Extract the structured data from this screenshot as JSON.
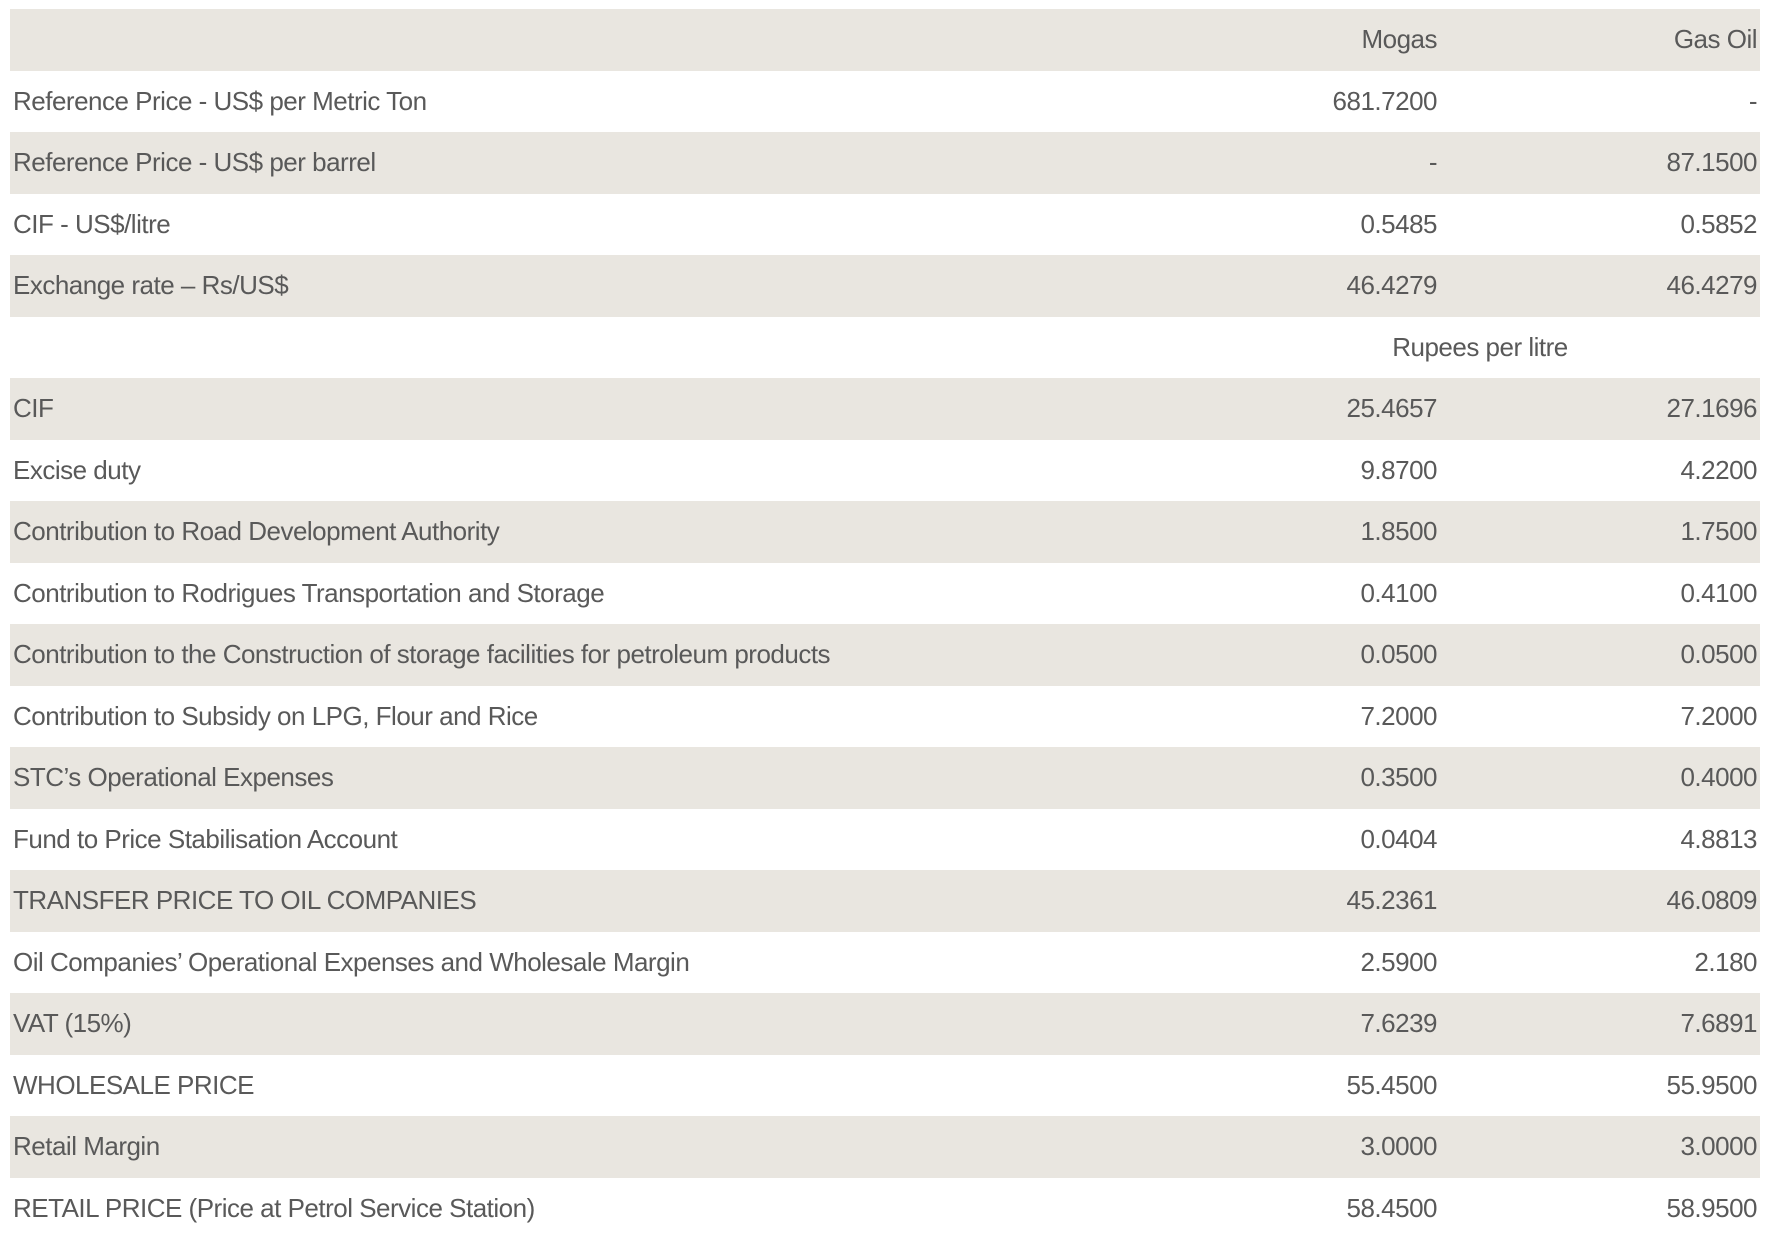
{
  "colors": {
    "accent_navy": "#1f3850",
    "text_gray": "#595959",
    "stripe_beige": "#e9e6e0",
    "background": "#ffffff"
  },
  "table": {
    "header": [
      "",
      "Mogas",
      "Gas Oil"
    ],
    "rows": [
      {
        "type": "data",
        "label": "Reference Price - US$ per Metric Ton",
        "mogas": "681.7200",
        "gasoil": "-",
        "emphasis": "values"
      },
      {
        "type": "data",
        "label": "Reference Price - US$ per barrel",
        "mogas": "-",
        "gasoil": "87.1500",
        "emphasis": "values"
      },
      {
        "type": "data",
        "label": "CIF - US$/litre",
        "mogas": "0.5485",
        "gasoil": "0.5852",
        "emphasis": "none"
      },
      {
        "type": "data",
        "label": "Exchange rate – Rs/US$",
        "mogas": "46.4279",
        "gasoil": "46.4279",
        "emphasis": "none"
      },
      {
        "type": "subheader",
        "label": "Rupees per litre"
      },
      {
        "type": "data",
        "label": "CIF",
        "mogas": "25.4657",
        "gasoil": "27.1696",
        "emphasis": "none"
      },
      {
        "type": "data",
        "label": "Excise duty",
        "mogas": "9.8700",
        "gasoil": "4.2200",
        "emphasis": "none"
      },
      {
        "type": "data",
        "label": "Contribution to Road Development Authority",
        "mogas": "1.8500",
        "gasoil": "1.7500",
        "emphasis": "none"
      },
      {
        "type": "data",
        "label": "Contribution to Rodrigues Transportation and Storage",
        "mogas": "0.4100",
        "gasoil": "0.4100",
        "emphasis": "none"
      },
      {
        "type": "data",
        "label": "Contribution to the Construction of storage facilities for petroleum products",
        "mogas": "0.0500",
        "gasoil": "0.0500",
        "emphasis": "none"
      },
      {
        "type": "data",
        "label": "Contribution to Subsidy on LPG, Flour and Rice",
        "mogas": "7.2000",
        "gasoil": "7.2000",
        "emphasis": "none"
      },
      {
        "type": "data",
        "label": "STC’s Operational Expenses",
        "mogas": "0.3500",
        "gasoil": "0.4000",
        "emphasis": "none"
      },
      {
        "type": "data",
        "label": "Fund to Price Stabilisation Account",
        "mogas": "0.0404",
        "gasoil": "4.8813",
        "emphasis": "none"
      },
      {
        "type": "data",
        "label": "TRANSFER PRICE TO OIL COMPANIES",
        "mogas": "45.2361",
        "gasoil": "46.0809",
        "emphasis": "all"
      },
      {
        "type": "data",
        "label": "Oil Companies’ Operational Expenses and Wholesale Margin",
        "mogas": "2.5900",
        "gasoil": "2.180",
        "emphasis": "none"
      },
      {
        "type": "data",
        "label": "VAT (15%)",
        "mogas": "7.6239",
        "gasoil": "7.6891",
        "emphasis": "none"
      },
      {
        "type": "data",
        "label": "WHOLESALE PRICE",
        "mogas": "55.4500",
        "gasoil": "55.9500",
        "emphasis": "all"
      },
      {
        "type": "data",
        "label": "Retail Margin",
        "mogas": "3.0000",
        "gasoil": "3.0000",
        "emphasis": "none"
      },
      {
        "type": "data",
        "label": "RETAIL PRICE (Price at Petrol Service Station)",
        "mogas": "58.4500",
        "gasoil": "58.9500",
        "emphasis": "all"
      }
    ]
  }
}
